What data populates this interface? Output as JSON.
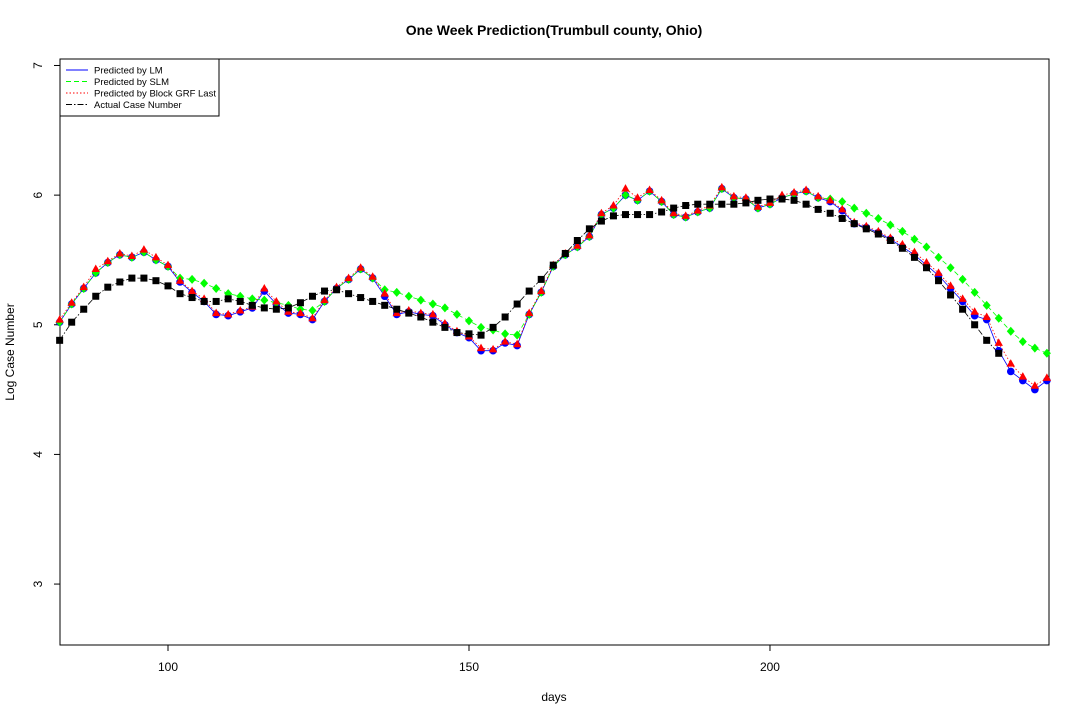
{
  "chart_data": {
    "type": "scatter",
    "title": "One Week Prediction(Trumbull county, Ohio)",
    "xlabel": "days",
    "ylabel": "Log Case Number",
    "xlim": [
      82.06,
      246.35
    ],
    "ylim": [
      2.53,
      7.05
    ],
    "xticks": [
      100,
      150,
      200
    ],
    "yticks": [
      3,
      4,
      5,
      6,
      7
    ],
    "legend": "top-left",
    "x": [
      82,
      84,
      86,
      88,
      90,
      92,
      94,
      96,
      98,
      100,
      102,
      104,
      106,
      108,
      110,
      112,
      114,
      116,
      118,
      120,
      122,
      124,
      126,
      128,
      130,
      132,
      134,
      136,
      138,
      140,
      142,
      144,
      146,
      148,
      150,
      152,
      154,
      156,
      158,
      160,
      162,
      164,
      166,
      168,
      170,
      172,
      174,
      176,
      178,
      180,
      182,
      184,
      186,
      188,
      190,
      192,
      194,
      196,
      198,
      200,
      202,
      204,
      206,
      208,
      210,
      212,
      214,
      216,
      218,
      220,
      222,
      224,
      226,
      228,
      230,
      232,
      234,
      236,
      238,
      240,
      242,
      244,
      246
    ],
    "series": [
      {
        "name": "Predicted by LM",
        "color": "#0000ff",
        "marker": "circle",
        "linestyle": "solid",
        "values": [
          5.02,
          5.16,
          5.28,
          5.4,
          5.48,
          5.54,
          5.52,
          5.56,
          5.5,
          5.45,
          5.33,
          5.25,
          5.18,
          5.08,
          5.07,
          5.1,
          5.13,
          5.26,
          5.16,
          5.09,
          5.08,
          5.04,
          5.18,
          5.28,
          5.35,
          5.43,
          5.36,
          5.22,
          5.08,
          5.1,
          5.08,
          5.07,
          5.0,
          4.94,
          4.9,
          4.8,
          4.8,
          4.86,
          4.84,
          5.08,
          5.25,
          5.45,
          5.54,
          5.6,
          5.68,
          5.85,
          5.9,
          6.0,
          5.96,
          6.03,
          5.95,
          5.85,
          5.83,
          5.87,
          5.9,
          6.05,
          5.98,
          5.97,
          5.9,
          5.93,
          5.98,
          6.01,
          6.03,
          5.98,
          5.95,
          5.88,
          5.78,
          5.75,
          5.71,
          5.66,
          5.6,
          5.54,
          5.46,
          5.38,
          5.28,
          5.18,
          5.07,
          5.04,
          4.8,
          4.64,
          4.57,
          4.5,
          4.57
        ]
      },
      {
        "name": "Predicted by SLM",
        "color": "#00ff00",
        "marker": "diamond",
        "linestyle": "dashed",
        "values": [
          5.02,
          5.16,
          5.28,
          5.4,
          5.48,
          5.54,
          5.52,
          5.56,
          5.5,
          5.45,
          5.36,
          5.35,
          5.32,
          5.28,
          5.24,
          5.22,
          5.2,
          5.19,
          5.17,
          5.15,
          5.12,
          5.11,
          5.18,
          5.28,
          5.35,
          5.43,
          5.36,
          5.27,
          5.25,
          5.22,
          5.19,
          5.16,
          5.13,
          5.08,
          5.03,
          4.98,
          4.96,
          4.93,
          4.92,
          5.08,
          5.25,
          5.45,
          5.54,
          5.6,
          5.68,
          5.85,
          5.9,
          6.0,
          5.96,
          6.03,
          5.95,
          5.85,
          5.83,
          5.87,
          5.9,
          6.05,
          5.98,
          5.97,
          5.9,
          5.93,
          5.98,
          6.01,
          6.03,
          5.98,
          5.97,
          5.95,
          5.9,
          5.86,
          5.82,
          5.77,
          5.72,
          5.66,
          5.6,
          5.52,
          5.44,
          5.35,
          5.25,
          5.15,
          5.05,
          4.95,
          4.87,
          4.82,
          4.78
        ]
      },
      {
        "name": "Predicted by Block GRF Last",
        "color": "#ff0000",
        "marker": "triangle",
        "linestyle": "dotted",
        "values": [
          5.04,
          5.17,
          5.29,
          5.43,
          5.49,
          5.55,
          5.53,
          5.58,
          5.52,
          5.46,
          5.34,
          5.26,
          5.2,
          5.09,
          5.08,
          5.11,
          5.14,
          5.28,
          5.18,
          5.1,
          5.09,
          5.05,
          5.19,
          5.29,
          5.36,
          5.44,
          5.37,
          5.24,
          5.09,
          5.11,
          5.09,
          5.08,
          5.01,
          4.95,
          4.91,
          4.82,
          4.81,
          4.87,
          4.85,
          5.09,
          5.26,
          5.46,
          5.55,
          5.61,
          5.69,
          5.86,
          5.92,
          6.05,
          5.98,
          6.04,
          5.96,
          5.86,
          5.84,
          5.88,
          5.92,
          6.06,
          5.99,
          5.98,
          5.91,
          5.94,
          6.0,
          6.02,
          6.04,
          5.99,
          5.96,
          5.89,
          5.79,
          5.76,
          5.72,
          5.67,
          5.62,
          5.56,
          5.48,
          5.4,
          5.3,
          5.2,
          5.1,
          5.06,
          4.86,
          4.7,
          4.6,
          4.53,
          4.59
        ]
      },
      {
        "name": "Actual Case Number",
        "color": "#000000",
        "marker": "square",
        "linestyle": "dashdot",
        "values": [
          4.88,
          5.02,
          5.12,
          5.22,
          5.29,
          5.33,
          5.36,
          5.36,
          5.34,
          5.3,
          5.24,
          5.21,
          5.18,
          5.18,
          5.2,
          5.18,
          5.15,
          5.13,
          5.12,
          5.13,
          5.17,
          5.22,
          5.26,
          5.27,
          5.24,
          5.21,
          5.18,
          5.15,
          5.12,
          5.09,
          5.06,
          5.02,
          4.98,
          4.94,
          4.93,
          4.92,
          4.98,
          5.06,
          5.16,
          5.26,
          5.35,
          5.46,
          5.55,
          5.65,
          5.74,
          5.8,
          5.84,
          5.85,
          5.85,
          5.85,
          5.87,
          5.9,
          5.92,
          5.93,
          5.93,
          5.93,
          5.93,
          5.94,
          5.96,
          5.97,
          5.97,
          5.96,
          5.93,
          5.89,
          5.86,
          5.82,
          5.78,
          5.74,
          5.7,
          5.65,
          5.59,
          5.52,
          5.44,
          5.34,
          5.23,
          5.12,
          5.0,
          4.88,
          4.78,
          null,
          null,
          null,
          null
        ]
      }
    ]
  }
}
